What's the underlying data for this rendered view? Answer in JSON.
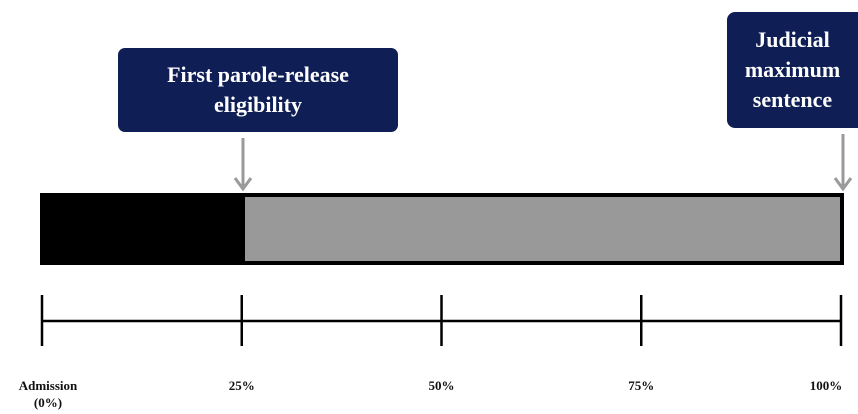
{
  "callouts": {
    "parole": {
      "line1": "First parole-release",
      "line2": "eligibility"
    },
    "maximum": {
      "line1": "Judicial",
      "line2": "maximum",
      "line3": "sentence"
    }
  },
  "bar": {
    "served_fraction": 0.25,
    "served_color": "#000000",
    "remaining_color": "#999999"
  },
  "axis": {
    "ticks": [
      {
        "value": 0,
        "line1": "Admission",
        "line2": "(0%)"
      },
      {
        "value": 25,
        "line1": "25%",
        "line2": ""
      },
      {
        "value": 50,
        "line1": "50%",
        "line2": ""
      },
      {
        "value": 75,
        "line1": "75%",
        "line2": ""
      },
      {
        "value": 100,
        "line1": "100%",
        "line2": ""
      }
    ]
  },
  "colors": {
    "callout_bg": "#0f1f55",
    "arrow": "#9a9a9a"
  }
}
